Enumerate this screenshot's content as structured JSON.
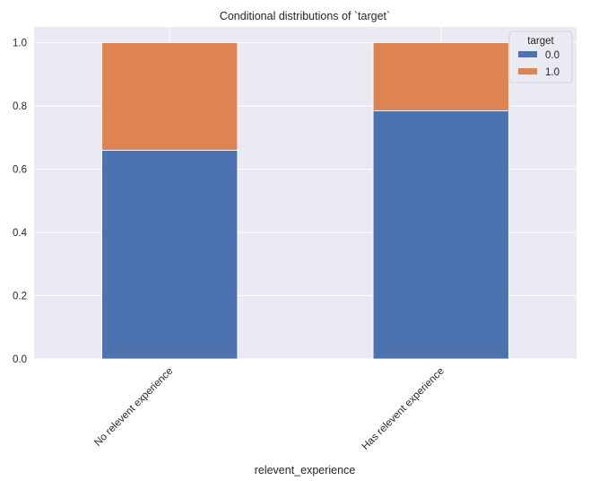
{
  "chart_data": {
    "type": "bar",
    "stacked": true,
    "title": "Conditional distributions of `target`",
    "xlabel": "relevent_experience",
    "ylabel": "",
    "categories": [
      "No relevent experience",
      "Has relevent experience"
    ],
    "series": [
      {
        "name": "0.0",
        "values": [
          0.66,
          0.785
        ],
        "color": "#4c72b0"
      },
      {
        "name": "1.0",
        "values": [
          0.34,
          0.215
        ],
        "color": "#dd8452"
      }
    ],
    "ylim": [
      0,
      1.05
    ],
    "yticks": [
      "0.0",
      "0.2",
      "0.4",
      "0.6",
      "0.8",
      "1.0"
    ],
    "grid": true,
    "legend": {
      "title": "target",
      "position": "top-right"
    },
    "background": "#eaeaf2"
  }
}
